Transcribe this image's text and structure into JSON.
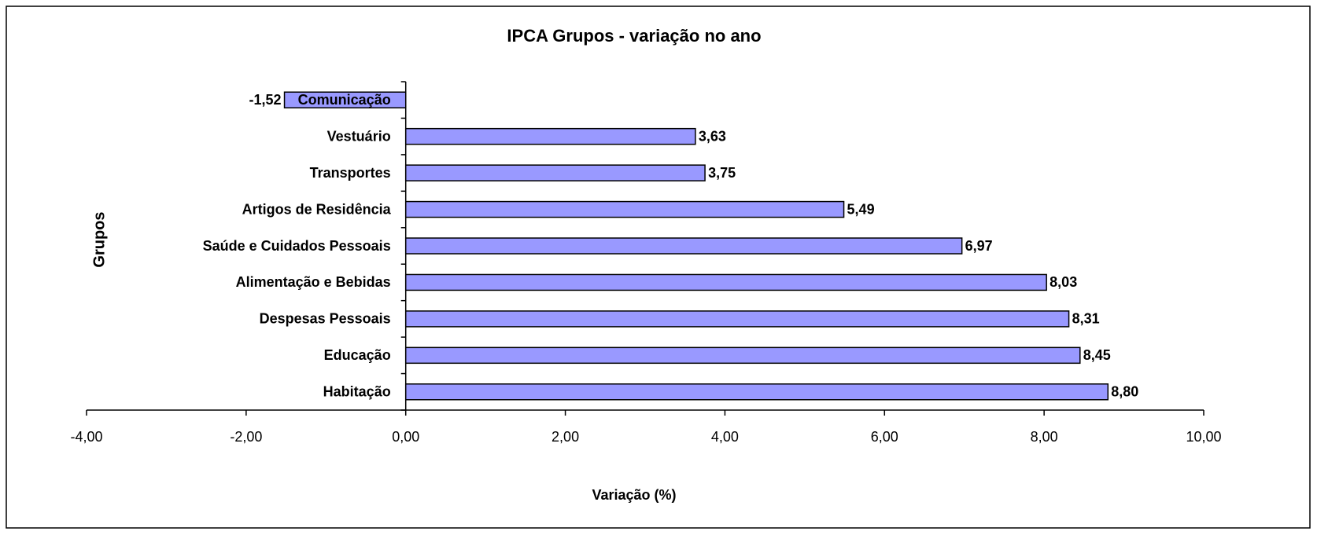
{
  "chart_data": {
    "type": "bar",
    "orientation": "horizontal",
    "title": "IPCA Grupos - variação no ano",
    "x_label": "Variação (%)",
    "y_label": "Grupos",
    "categories": [
      "Comunicação",
      "Vestuário",
      "Transportes",
      "Artigos de Residência",
      "Saúde e Cuidados Pessoais",
      "Alimentação e Bebidas",
      "Despesas Pessoais",
      "Educação",
      "Habitação"
    ],
    "values": [
      -1.52,
      3.63,
      3.75,
      5.49,
      6.97,
      8.03,
      8.31,
      8.45,
      8.8
    ],
    "value_labels": [
      "-1,52",
      "3,63",
      "3,75",
      "5,49",
      "6,97",
      "8,03",
      "8,31",
      "8,45",
      "8,80"
    ],
    "color": "#9999ff",
    "xlim": [
      -4,
      10
    ],
    "xticks": [
      {
        "value": -4,
        "label": "-4,00"
      },
      {
        "value": -2,
        "label": "-2,00"
      },
      {
        "value": 0,
        "label": "0,00"
      },
      {
        "value": 2,
        "label": "2,00"
      },
      {
        "value": 4,
        "label": "4,00"
      },
      {
        "value": 6,
        "label": "6,00"
      },
      {
        "value": 8,
        "label": "8,00"
      },
      {
        "value": 10,
        "label": "10,00"
      }
    ],
    "grid": false
  }
}
